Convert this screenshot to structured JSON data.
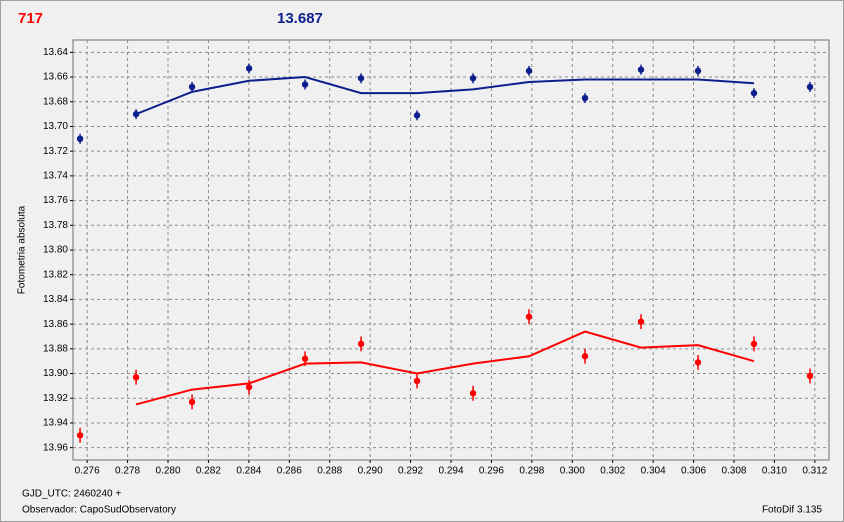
{
  "chart_data": {
    "type": "scatter",
    "annotations": [
      {
        "text": "717",
        "color": "#ff0000"
      },
      {
        "text": "13.687",
        "color": "#0d1f8c"
      }
    ],
    "y_label": "Fotometria absoluta",
    "footer_left": [
      "GJD_UTC: 2460240 +",
      "Observador: CapoSudObservatory"
    ],
    "footer_right": "FotoDif 3.135",
    "xlim": [
      0.2753,
      0.3127
    ],
    "ylim": [
      13.97,
      13.63
    ],
    "grid": true,
    "xticks": [
      0.276,
      0.278,
      {
        "value": 0.28,
        "label": "0.280"
      },
      0.282,
      0.284,
      0.286,
      0.288,
      {
        "value": 0.29,
        "label": "0.290"
      },
      0.292,
      0.294,
      0.296,
      0.298,
      {
        "value": 0.3,
        "label": "0.300"
      },
      0.302,
      0.304,
      0.306,
      0.308,
      {
        "value": 0.31,
        "label": "0.310"
      },
      0.312
    ],
    "yticks": [
      13.64,
      13.66,
      13.68,
      {
        "value": 13.7,
        "label": "13.70"
      },
      13.72,
      13.74,
      13.76,
      13.78,
      {
        "value": 13.8,
        "label": "13.80"
      },
      13.82,
      13.84,
      13.86,
      13.88,
      {
        "value": 13.9,
        "label": "13.90"
      },
      13.92,
      13.94,
      13.96
    ],
    "series": [
      {
        "type": "scatter",
        "color": "#0d1f8c",
        "x": [
          0.27565,
          0.27842,
          0.28119,
          0.28401,
          0.28678,
          0.28955,
          0.29232,
          0.29509,
          0.29786,
          0.30063,
          0.3034,
          0.30622,
          0.30899,
          0.31176
        ],
        "values": [
          13.71,
          13.69,
          13.668,
          13.653,
          13.666,
          13.661,
          13.691,
          13.661,
          13.655,
          13.677,
          13.654,
          13.655,
          13.673,
          13.668
        ],
        "errors": [
          0.004,
          0.004,
          0.004,
          0.004,
          0.004,
          0.004,
          0.004,
          0.004,
          0.004,
          0.004,
          0.004,
          0.004,
          0.004,
          0.004
        ]
      },
      {
        "type": "line",
        "color": "#0d1f8c",
        "x": [
          0.27842,
          0.28119,
          0.28401,
          0.28678,
          0.28955,
          0.29232,
          0.29509,
          0.29786,
          0.30063,
          0.3034,
          0.30622,
          0.30899
        ],
        "values": [
          13.69,
          13.672,
          13.663,
          13.66,
          13.673,
          13.673,
          13.67,
          13.664,
          13.662,
          13.662,
          13.662,
          13.665
        ]
      },
      {
        "type": "scatter",
        "color": "#ff0000",
        "x": [
          0.27565,
          0.27842,
          0.28119,
          0.28401,
          0.28678,
          0.28955,
          0.29232,
          0.29509,
          0.29786,
          0.30063,
          0.3034,
          0.30622,
          0.30899,
          0.31176
        ],
        "values": [
          13.95,
          13.903,
          13.923,
          13.911,
          13.888,
          13.876,
          13.906,
          13.916,
          13.854,
          13.886,
          13.858,
          13.891,
          13.876,
          13.902
        ],
        "errors": [
          0.006,
          0.006,
          0.006,
          0.006,
          0.006,
          0.006,
          0.006,
          0.006,
          0.006,
          0.006,
          0.006,
          0.006,
          0.006,
          0.006
        ]
      },
      {
        "type": "line",
        "color": "#ff0000",
        "x": [
          0.27842,
          0.28119,
          0.28401,
          0.28678,
          0.28955,
          0.29232,
          0.29509,
          0.29786,
          0.30063,
          0.3034,
          0.30622,
          0.30899
        ],
        "values": [
          13.925,
          13.913,
          13.908,
          13.892,
          13.891,
          13.9,
          13.892,
          13.886,
          13.866,
          13.879,
          13.877,
          13.89
        ]
      }
    ]
  }
}
